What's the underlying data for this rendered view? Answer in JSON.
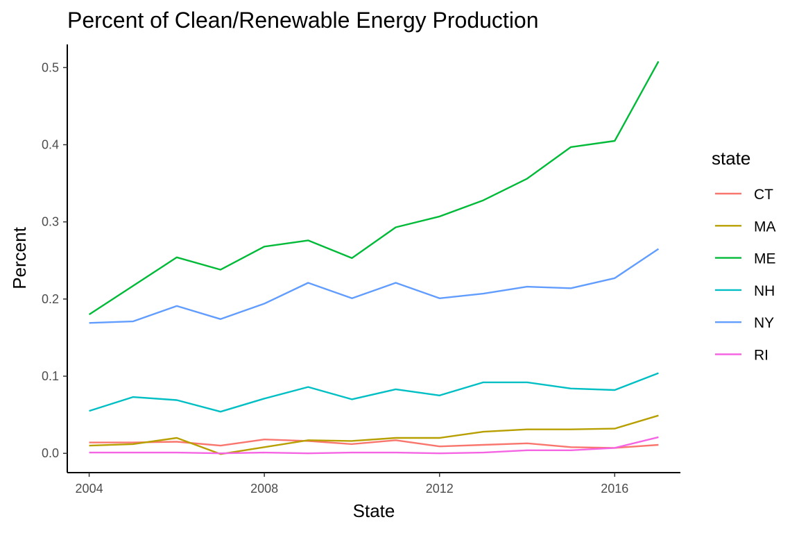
{
  "chart_data": {
    "type": "line",
    "title": "Percent of Clean/Renewable Energy Production",
    "xlabel": "State",
    "ylabel": "Percent",
    "xlim": [
      2003.5,
      2017.5
    ],
    "ylim": [
      -0.025,
      0.53
    ],
    "x_ticks": [
      2004,
      2008,
      2012,
      2016
    ],
    "y_ticks": [
      0.0,
      0.1,
      0.2,
      0.3,
      0.4,
      0.5
    ],
    "y_tick_labels": [
      "0.0",
      "0.1",
      "0.2",
      "0.3",
      "0.4",
      "0.5"
    ],
    "grid": false,
    "legend": {
      "title": "state",
      "position": "right"
    },
    "x": [
      2004,
      2005,
      2006,
      2007,
      2008,
      2009,
      2010,
      2011,
      2012,
      2013,
      2014,
      2015,
      2016,
      2017
    ],
    "series": [
      {
        "name": "CT",
        "color": "#F8766D",
        "values": [
          0.014,
          0.014,
          0.015,
          0.01,
          0.018,
          0.016,
          0.012,
          0.017,
          0.009,
          0.011,
          0.013,
          0.008,
          0.007,
          0.011
        ]
      },
      {
        "name": "MA",
        "color": "#B79F00",
        "values": [
          0.01,
          0.012,
          0.02,
          -0.001,
          0.008,
          0.017,
          0.016,
          0.02,
          0.02,
          0.028,
          0.031,
          0.031,
          0.032,
          0.049
        ]
      },
      {
        "name": "ME",
        "color": "#00BA38",
        "values": [
          0.18,
          0.217,
          0.254,
          0.238,
          0.268,
          0.276,
          0.253,
          0.293,
          0.307,
          0.328,
          0.356,
          0.397,
          0.405,
          0.508
        ]
      },
      {
        "name": "NH",
        "color": "#00BFC4",
        "values": [
          0.055,
          0.073,
          0.069,
          0.054,
          0.071,
          0.086,
          0.07,
          0.083,
          0.075,
          0.092,
          0.092,
          0.084,
          0.082,
          0.104
        ]
      },
      {
        "name": "NY",
        "color": "#619CFF",
        "values": [
          0.169,
          0.171,
          0.191,
          0.174,
          0.194,
          0.221,
          0.201,
          0.221,
          0.201,
          0.207,
          0.216,
          0.214,
          0.227,
          0.265
        ]
      },
      {
        "name": "RI",
        "color": "#F564E3",
        "values": [
          0.001,
          0.001,
          0.001,
          0.0,
          0.001,
          0.0,
          0.001,
          0.001,
          0.0,
          0.001,
          0.004,
          0.004,
          0.007,
          0.021
        ]
      }
    ]
  }
}
